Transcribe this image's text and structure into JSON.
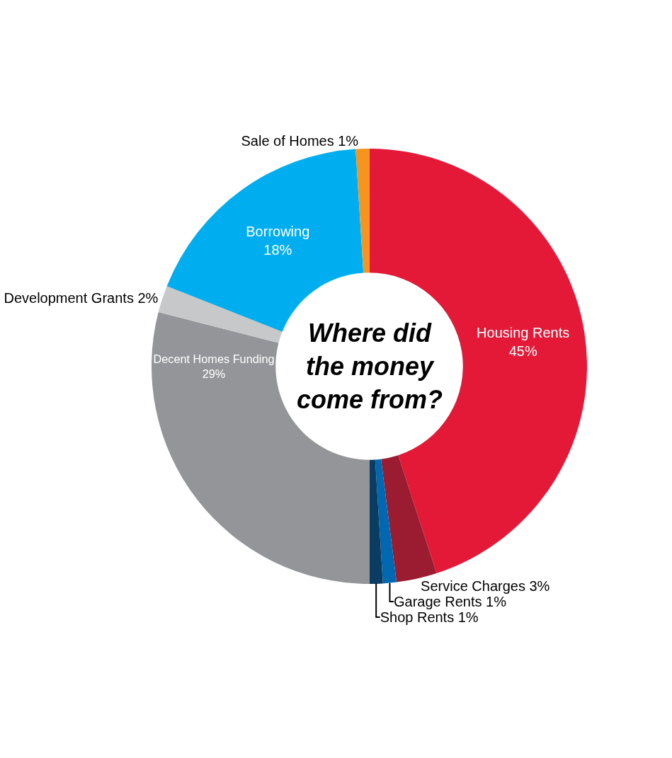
{
  "chart_data": {
    "type": "donut",
    "title": "Where did the money come from?",
    "categories": [
      "Housing Rents",
      "Service Charges",
      "Garage Rents",
      "Shop Rents",
      "Decent Homes Funding",
      "Development Grants",
      "Borrowing",
      "Sale of Homes"
    ],
    "values": [
      45,
      3,
      1,
      1,
      29,
      2,
      18,
      1
    ],
    "value_labels": [
      "45%",
      "3%",
      "1%",
      "1%",
      "29%",
      "2%",
      "18%",
      "1%"
    ],
    "colors": [
      "#e31937",
      "#9b1b30",
      "#0067b1",
      "#0b3c61",
      "#939598",
      "#c7c8ca",
      "#00aeef",
      "#f7941d"
    ],
    "legend": false
  }
}
